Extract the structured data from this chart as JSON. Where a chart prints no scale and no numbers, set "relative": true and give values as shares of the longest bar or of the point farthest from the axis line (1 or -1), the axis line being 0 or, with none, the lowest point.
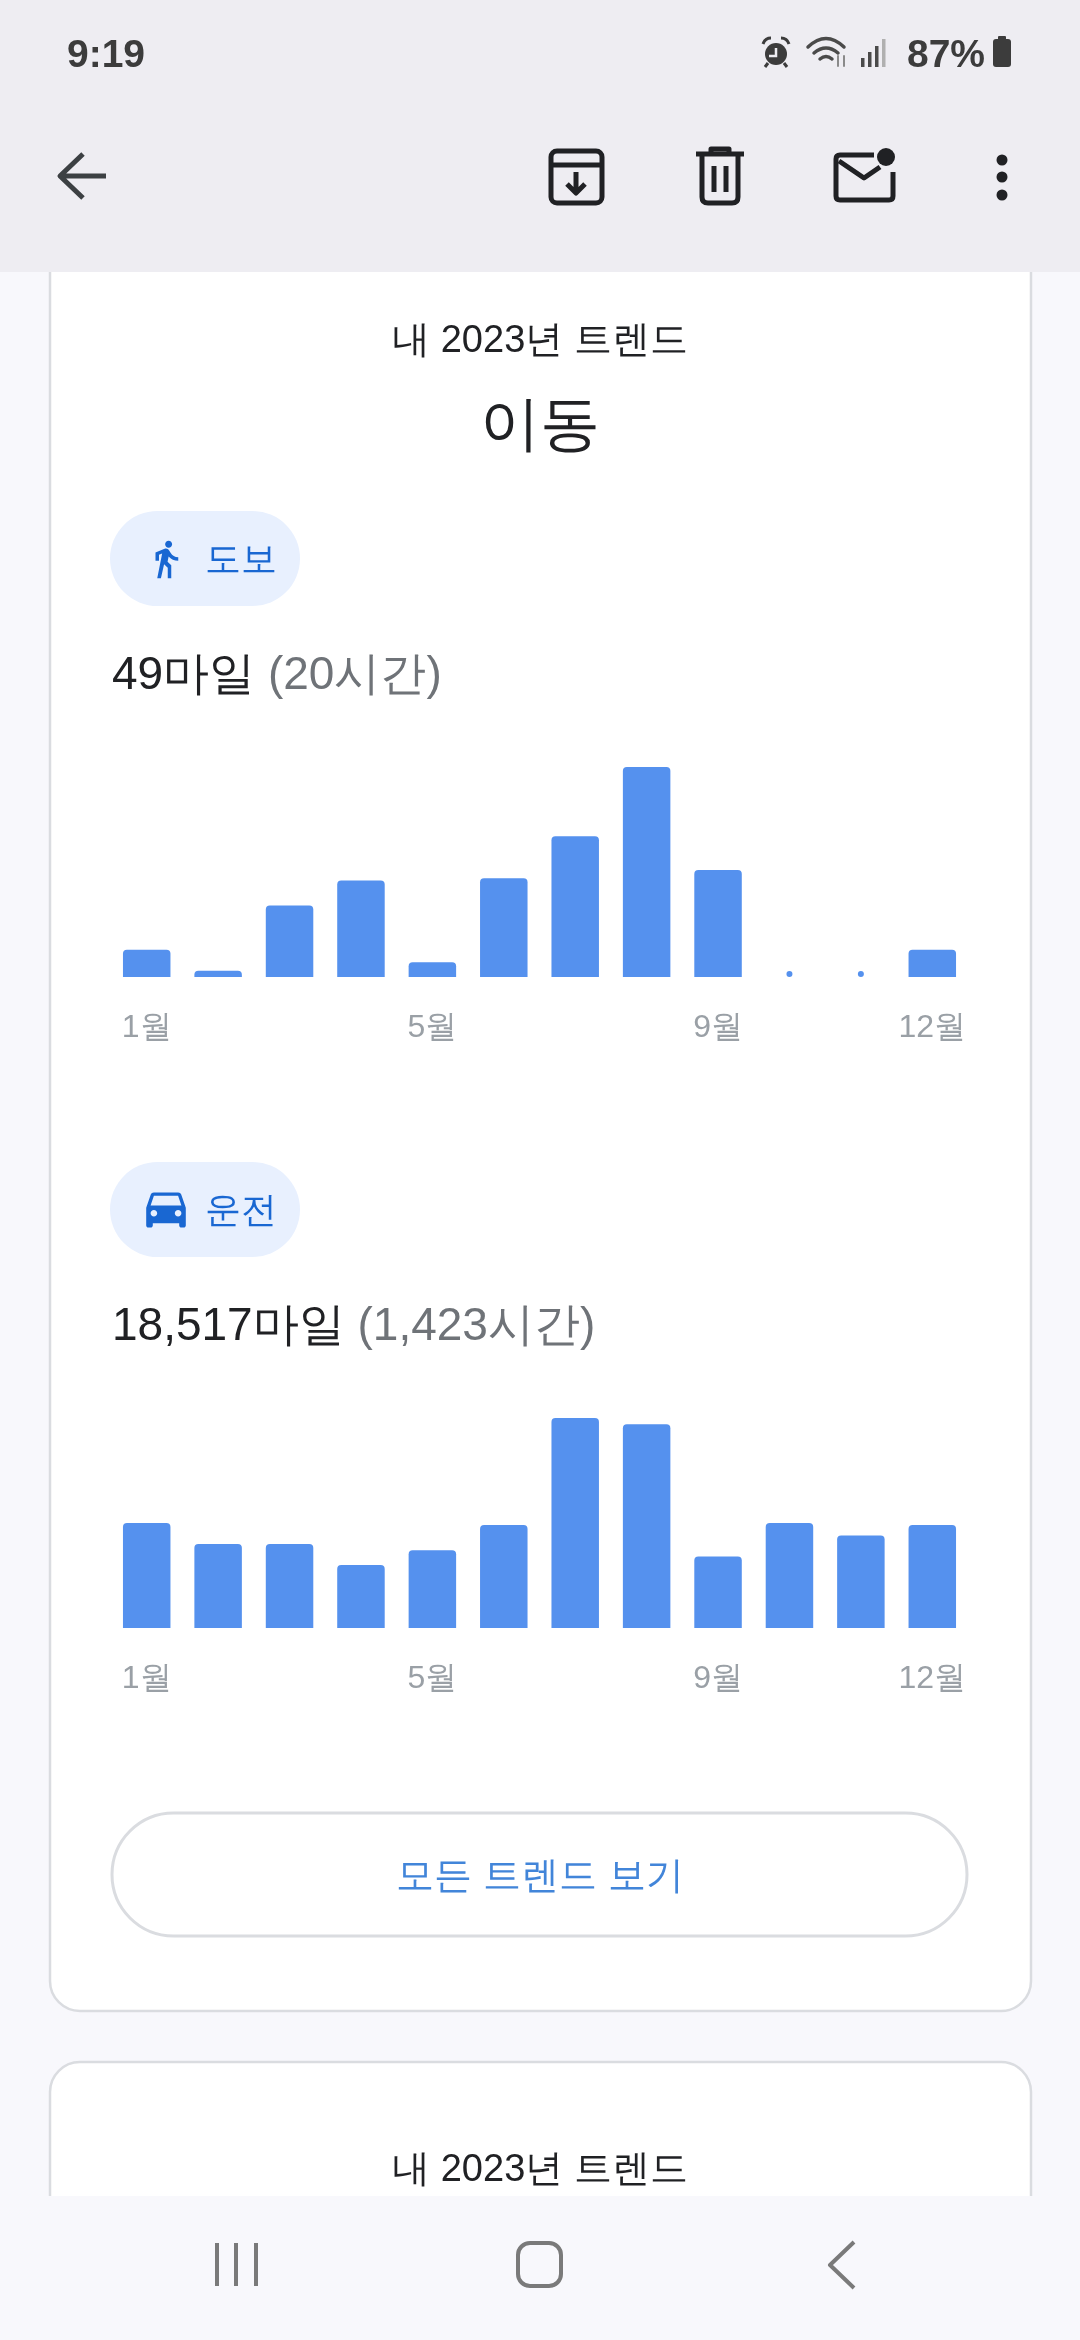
{
  "chart_data": [
    {
      "type": "bar",
      "title": "도보",
      "subtitle": "49마일 (20시간)",
      "annotations": [
        "9:19",
        "87%",
        "내 2023년 트렌드",
        "이동"
      ],
      "categories": [
        "1월",
        null,
        null,
        null,
        "5월",
        null,
        null,
        null,
        "9월",
        null,
        null,
        "12월"
      ],
      "values": [
        0.13,
        0.03,
        0.34,
        0.46,
        0.07,
        0.47,
        0.67,
        1,
        0.51,
        0,
        0,
        0.13
      ],
      "color": "#5591ee",
      "relative": true
    },
    {
      "type": "bar",
      "title": "운전",
      "subtitle": "18,517마일 (1,423시간)",
      "annotations": [
        "모든 트렌드 보기",
        "내 2023년 트렌드"
      ],
      "categories": [
        "1월",
        null,
        null,
        null,
        "5월",
        null,
        null,
        null,
        "9월",
        null,
        null,
        "12월"
      ],
      "values": [
        0.5,
        0.4,
        0.4,
        0.3,
        0.37,
        0.49,
        1,
        0.97,
        0.34,
        0.5,
        0.44,
        0.49
      ],
      "color": "#5591ee",
      "relative": true
    }
  ]
}
